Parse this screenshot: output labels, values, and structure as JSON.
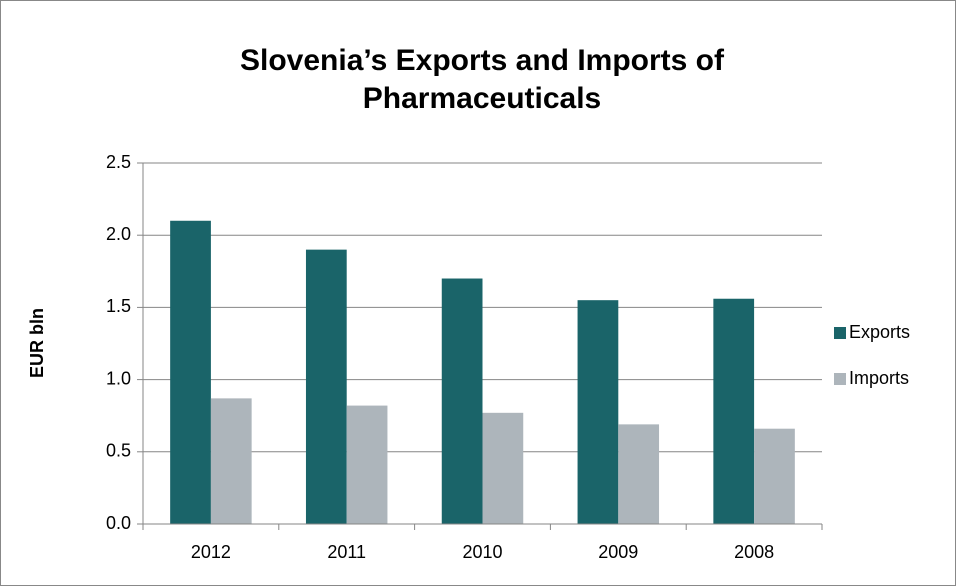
{
  "chart_data": {
    "type": "bar",
    "title": "Slovenia’s Exports and Imports of Pharmaceuticals",
    "y_label": "EUR bln",
    "categories": [
      "2012",
      "2011",
      "2010",
      "2009",
      "2008"
    ],
    "series": [
      {
        "name": "Exports",
        "color": "#1a6469",
        "values": [
          2.1,
          1.9,
          1.7,
          1.55,
          1.56
        ]
      },
      {
        "name": "Imports",
        "color": "#adb5bb",
        "values": [
          0.87,
          0.82,
          0.77,
          0.69,
          0.66
        ]
      }
    ],
    "ylim": [
      0,
      2.5
    ],
    "yticks": [
      {
        "value": 0,
        "label": "0.0"
      },
      0.5,
      {
        "value": 1,
        "label": "1.0"
      },
      1.5,
      {
        "value": 2,
        "label": "2.0"
      },
      2.5
    ],
    "grid": true,
    "legend": "right"
  }
}
